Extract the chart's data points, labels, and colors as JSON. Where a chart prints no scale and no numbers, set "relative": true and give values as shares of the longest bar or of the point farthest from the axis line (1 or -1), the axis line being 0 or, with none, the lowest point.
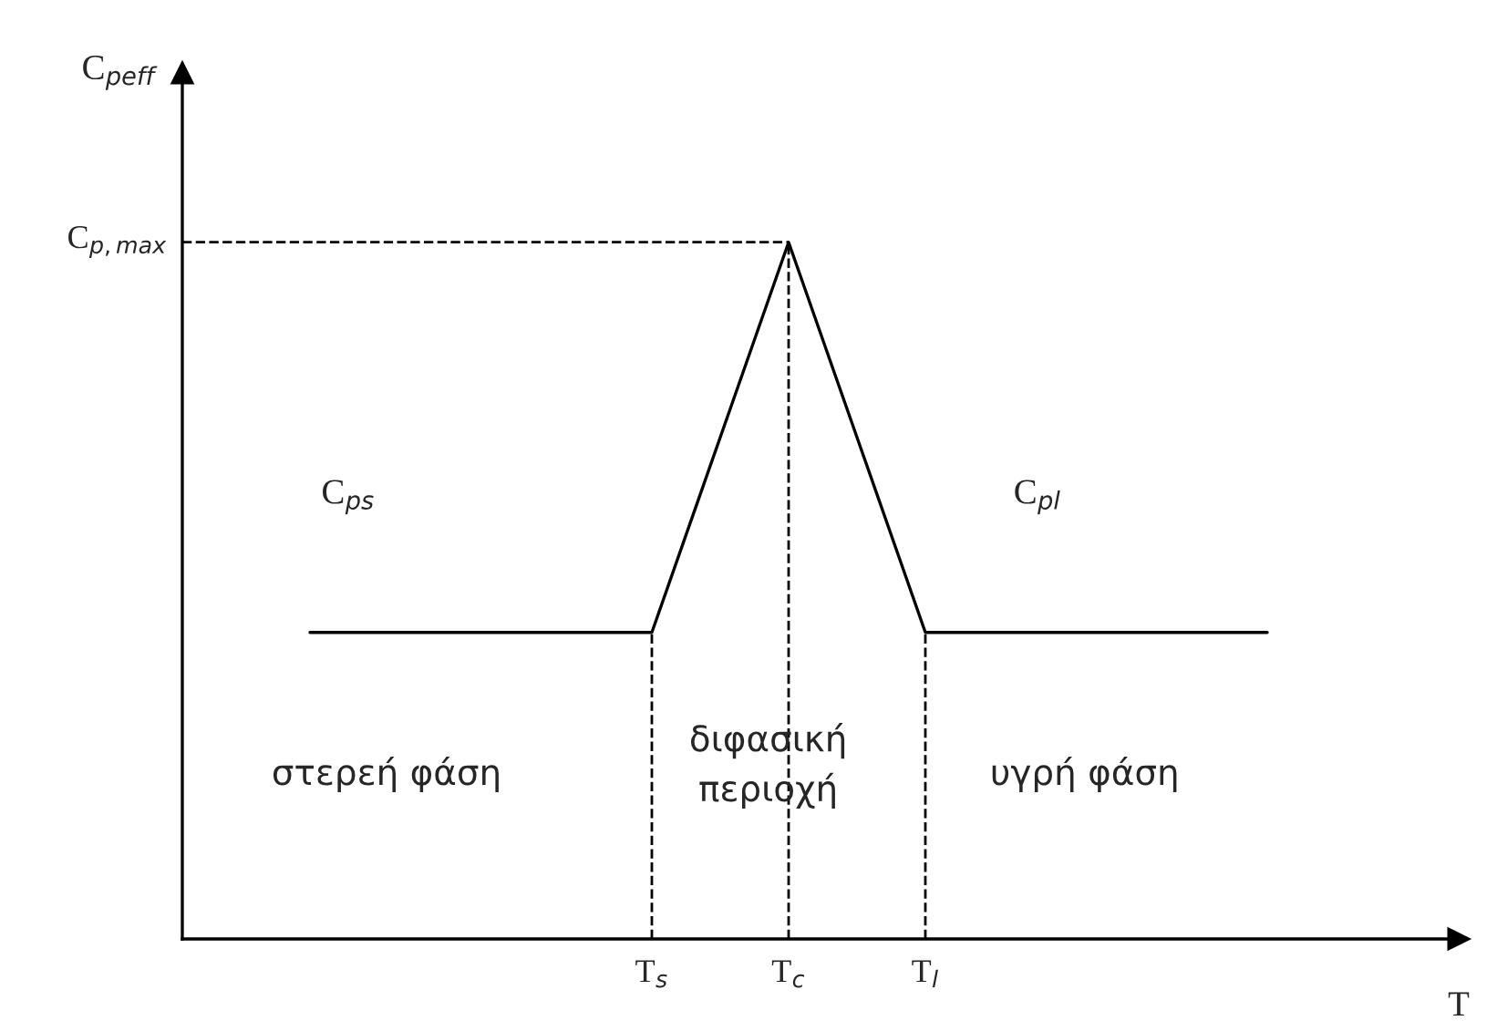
{
  "chart_data": {
    "type": "line",
    "relative": true,
    "xlabel": "T",
    "categories": [
      null,
      null,
      null,
      null,
      null,
      "T$_{s}$",
      null,
      "T$_{c}$",
      null,
      "T$_{l}$",
      null,
      null,
      null,
      null,
      null
    ],
    "series": [
      {
        "color": "#000000",
        "values": [
          0.44,
          0.44,
          0.44,
          0.44,
          0.44,
          0.44,
          0.72,
          1,
          0.72,
          0.44,
          0.44,
          0.44,
          0.44,
          0.44,
          0.44
        ]
      }
    ],
    "ref_lines": [
      {
        "axis": "y",
        "value": 1,
        "label": "C$_{p,max}$",
        "line_style": "dashed",
        "color": "#000000"
      },
      {
        "axis": "x",
        "value": "T$_{s}$",
        "line_style": "dashed",
        "color": "#000000"
      },
      {
        "axis": "x",
        "value": "T$_{c}$",
        "line_style": "dashed",
        "color": "#000000"
      },
      {
        "axis": "x",
        "value": "T$_{l}$",
        "line_style": "dashed",
        "color": "#000000"
      }
    ],
    "annotations": [
      "C$_{ps}$",
      "C$_{pl}$",
      "στερεή φάση",
      "διφασική\nπεριοχή",
      "υγρή φάση",
      "C$_{peff}$"
    ],
    "grid": false,
    "legend": false,
    "tick_labels": "x",
    "marker": "none",
    "line_style": "solid"
  }
}
